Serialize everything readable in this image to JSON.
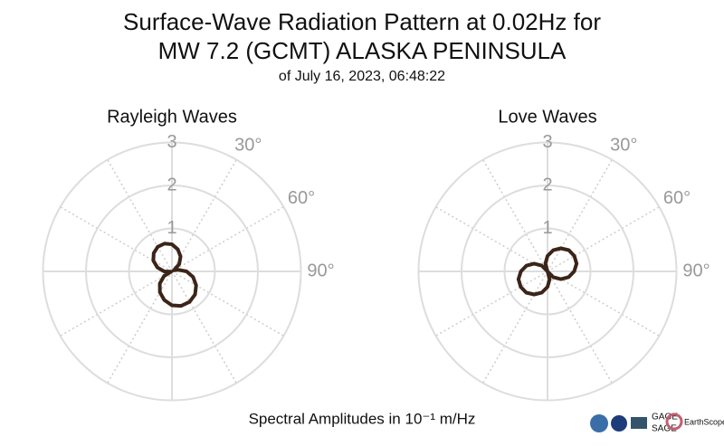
{
  "title": [
    "Surface-Wave Radiation Pattern at 0.02Hz for",
    "MW 7.2 (GCMT) ALASKA PENINSULA"
  ],
  "subtitle": "of July 16, 2023, 06:48:22",
  "footer": "Spectral Amplitudes in 10⁻¹ m/Hz",
  "logos": [
    "GAGE",
    "SAGE",
    "EarthScope"
  ],
  "chart_data": [
    {
      "type": "polar",
      "title": "Rayleigh Waves",
      "color": "#3b2418",
      "theta": [
        0,
        15,
        30,
        45,
        60,
        75,
        90,
        105,
        120,
        135,
        150,
        165,
        180,
        195,
        210,
        225,
        240,
        255,
        270,
        285,
        300,
        315,
        330,
        345
      ],
      "values": [
        0.63,
        0.53,
        0.4,
        0.24,
        0.05,
        0.15,
        0.34,
        0.51,
        0.65,
        0.76,
        0.82,
        0.83,
        0.79,
        0.69,
        0.56,
        0.4,
        0.21,
        0.02,
        0.18,
        0.35,
        0.5,
        0.6,
        0.66,
        0.67
      ],
      "rlim": [
        0,
        3
      ],
      "rticks": [
        1,
        2,
        3
      ],
      "thetaticks": [
        {
          "value": 30,
          "label": "30°"
        },
        {
          "value": 60,
          "label": "60°"
        },
        {
          "value": 90,
          "label": "90°"
        }
      ]
    },
    {
      "type": "polar",
      "title": "Love Waves",
      "color": "#3b2418",
      "theta": [
        0,
        15,
        30,
        45,
        60,
        75,
        90,
        105,
        120,
        135,
        150,
        165,
        180,
        195,
        210,
        225,
        240,
        255,
        270,
        285,
        300,
        315,
        330,
        345
      ],
      "values": [
        0.36,
        0.51,
        0.62,
        0.7,
        0.72,
        0.7,
        0.62,
        0.51,
        0.36,
        0.19,
        0,
        0.19,
        0.36,
        0.51,
        0.62,
        0.7,
        0.72,
        0.7,
        0.62,
        0.51,
        0.36,
        0.19,
        0,
        0.19
      ],
      "rlim": [
        0,
        3
      ],
      "rticks": [
        1,
        2,
        3
      ],
      "thetaticks": [
        {
          "value": 30,
          "label": "30°"
        },
        {
          "value": 60,
          "label": "60°"
        },
        {
          "value": 90,
          "label": "90°"
        }
      ]
    }
  ]
}
